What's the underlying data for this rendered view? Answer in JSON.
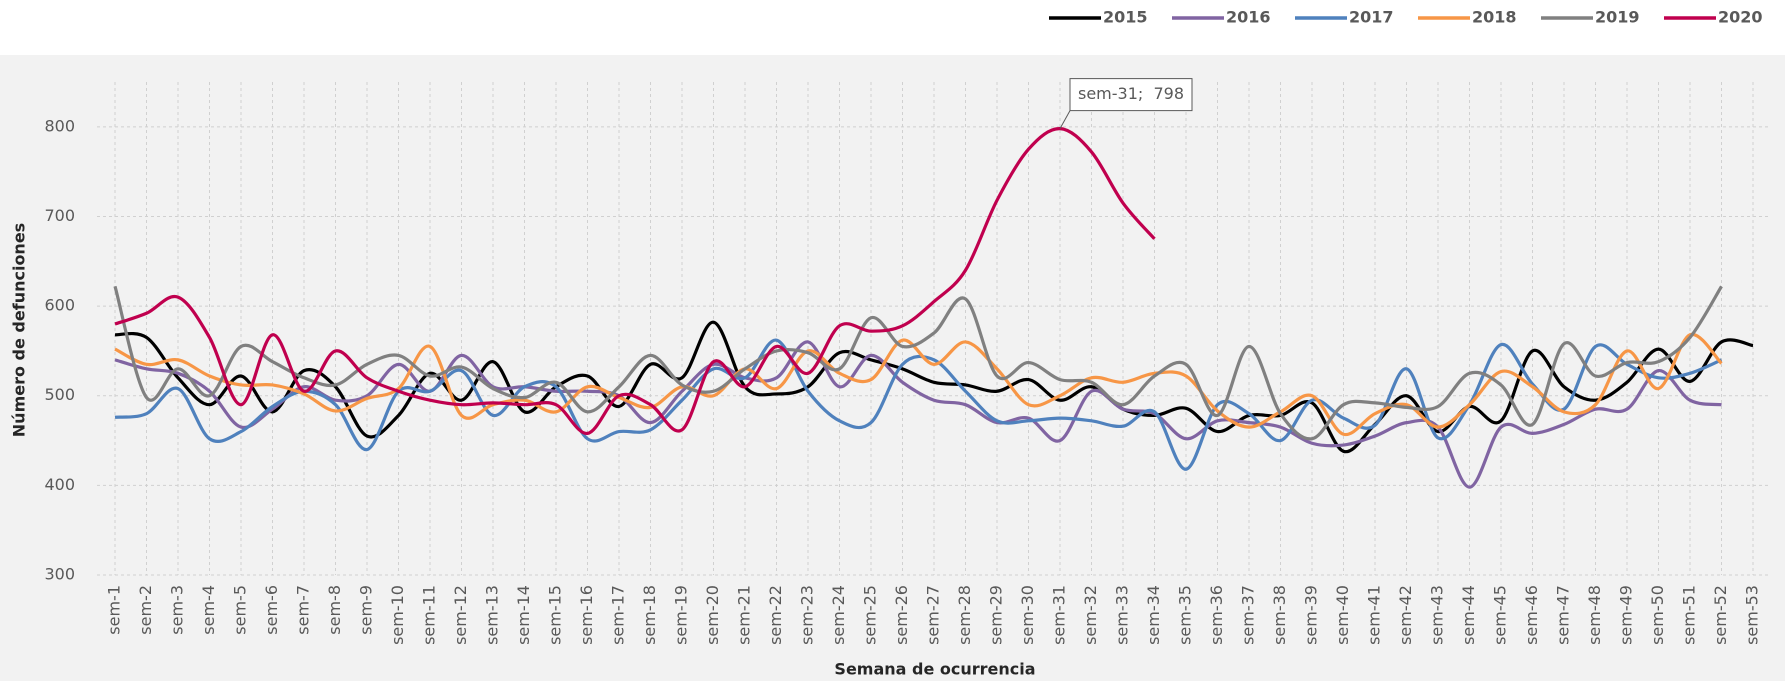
{
  "chart_data": {
    "type": "line",
    "annotation": "sem-31;  798",
    "xlabel": "Semana de ocurrencia",
    "ylabel": "Número de defunciones",
    "categories": [
      "sem-1",
      "sem-2",
      "sem-3",
      "sem-4",
      "sem-5",
      "sem-6",
      "sem-7",
      "sem-8",
      "sem-9",
      "sem-10",
      "sem-11",
      "sem-12",
      "sem-13",
      "sem-14",
      "sem-15",
      "sem-16",
      "sem-17",
      "sem-18",
      "sem-19",
      "sem-20",
      "sem-21",
      "sem-22",
      "sem-23",
      "sem-24",
      "sem-25",
      "sem-26",
      "sem-27",
      "sem-28",
      "sem-29",
      "sem-30",
      "sem-31",
      "sem-32",
      "sem-33",
      "sem-34",
      "sem-35",
      "sem-36",
      "sem-37",
      "sem-38",
      "sem-39",
      "sem-40",
      "sem-41",
      "sem-42",
      "sem-43",
      "sem-44",
      "sem-45",
      "sem-46",
      "sem-47",
      "sem-48",
      "sem-49",
      "sem-50",
      "sem-51",
      "sem-52",
      "sem-53"
    ],
    "ylim": [
      300,
      850
    ],
    "yticks": [
      300,
      400,
      500,
      600,
      700,
      800
    ],
    "grid": true,
    "legend": "top-right",
    "series": [
      {
        "name": "2015",
        "color": "#000000",
        "values": [
          568,
          565,
          520,
          490,
          522,
          482,
          528,
          510,
          455,
          478,
          525,
          495,
          538,
          482,
          510,
          522,
          488,
          535,
          520,
          582,
          510,
          502,
          510,
          548,
          540,
          530,
          515,
          512,
          505,
          518,
          495,
          510,
          485,
          478,
          486,
          460,
          478,
          478,
          492,
          438,
          468,
          500,
          460,
          488,
          472,
          550,
          510,
          495,
          515,
          552,
          516,
          560,
          556
        ]
      },
      {
        "name": "2016",
        "color": "#8064a2",
        "values": [
          540,
          530,
          525,
          505,
          465,
          485,
          510,
          495,
          500,
          535,
          505,
          545,
          510,
          510,
          505,
          505,
          500,
          470,
          505,
          535,
          520,
          520,
          560,
          510,
          545,
          515,
          495,
          490,
          470,
          475,
          450,
          505,
          485,
          480,
          452,
          472,
          470,
          465,
          447,
          445,
          455,
          470,
          465,
          398,
          465,
          458,
          468,
          485,
          485,
          528,
          495,
          490,
          null
        ]
      },
      {
        "name": "2017",
        "color": "#4f81bd",
        "values": [
          476,
          480,
          508,
          452,
          460,
          488,
          505,
          490,
          440,
          505,
          505,
          528,
          478,
          510,
          510,
          452,
          460,
          462,
          495,
          530,
          520,
          562,
          505,
          472,
          470,
          535,
          540,
          505,
          472,
          472,
          475,
          472,
          466,
          482,
          418,
          490,
          480,
          450,
          495,
          475,
          467,
          530,
          453,
          490,
          557,
          513,
          485,
          555,
          535,
          520,
          525,
          540,
          null
        ]
      },
      {
        "name": "2018",
        "color": "#f79646",
        "values": [
          552,
          535,
          540,
          522,
          512,
          512,
          502,
          483,
          497,
          508,
          555,
          478,
          490,
          495,
          482,
          510,
          498,
          487,
          510,
          500,
          530,
          508,
          550,
          525,
          518,
          562,
          535,
          560,
          530,
          490,
          500,
          520,
          515,
          525,
          522,
          483,
          465,
          482,
          500,
          457,
          480,
          490,
          465,
          490,
          527,
          510,
          482,
          490,
          550,
          508,
          568,
          536,
          null
        ]
      },
      {
        "name": "2019",
        "color": "#808080",
        "values": [
          622,
          498,
          530,
          500,
          555,
          538,
          520,
          512,
          535,
          545,
          522,
          532,
          508,
          498,
          515,
          482,
          510,
          545,
          512,
          505,
          530,
          550,
          548,
          530,
          587,
          555,
          570,
          608,
          522,
          537,
          518,
          515,
          490,
          522,
          535,
          478,
          555,
          480,
          452,
          490,
          492,
          487,
          488,
          525,
          512,
          468,
          558,
          522,
          537,
          538,
          565,
          622,
          null
        ]
      },
      {
        "name": "2020",
        "color": "#c0004e",
        "values": [
          580,
          592,
          610,
          565,
          490,
          568,
          505,
          550,
          520,
          505,
          495,
          490,
          492,
          490,
          490,
          458,
          500,
          490,
          462,
          538,
          510,
          555,
          525,
          578,
          572,
          578,
          605,
          640,
          718,
          775,
          798,
          772,
          715,
          675,
          null,
          null,
          null,
          null,
          null,
          null,
          null,
          null,
          null,
          null,
          null,
          null,
          null,
          null,
          null,
          null,
          null,
          null,
          null
        ]
      }
    ]
  }
}
